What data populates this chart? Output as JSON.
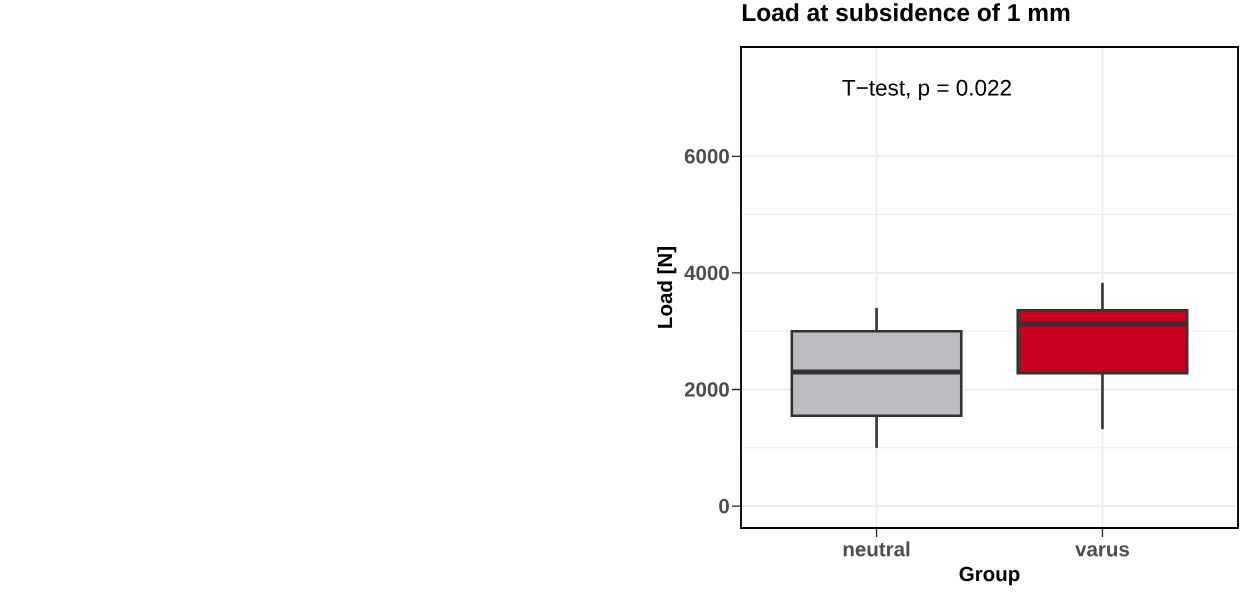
{
  "chart_data": {
    "type": "box",
    "title": "Load at subsidence of 1 mm",
    "xlabel": "Group",
    "ylabel": "Load [N]",
    "categories": [
      "neutral",
      "varus"
    ],
    "boxes": [
      {
        "low": 1000,
        "q1": 1550,
        "median": 2300,
        "q3": 3000,
        "high": 3400
      },
      {
        "low": 1320,
        "q1": 2280,
        "median": 3130,
        "q3": 3360,
        "high": 3830
      }
    ],
    "colors": [
      "#bcbdc2",
      "#c8001e"
    ],
    "ylim": [
      -375,
      7875
    ],
    "yticks": [
      0,
      2000,
      4000,
      6000
    ],
    "grid": true,
    "annotations": [
      "T−test, p = 0.022"
    ]
  }
}
